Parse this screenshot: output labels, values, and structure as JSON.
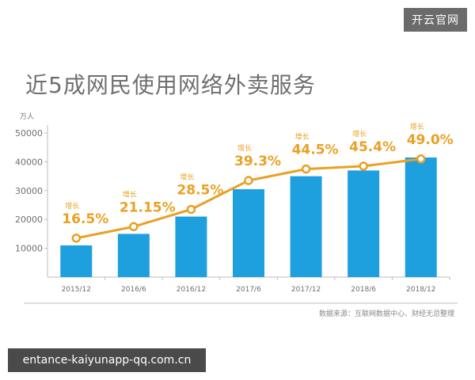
{
  "badge": "开云官网",
  "watermark": "entance-kaiyunapp-qq.com.cn",
  "source": "数据来源：互联网数据中心、财经无忌整理",
  "colors": {
    "bar": "#1ea0df",
    "line": "#eaa024",
    "axis": "#bdbdbd",
    "text": "#6f6f6f"
  },
  "chart_data": {
    "type": "bar",
    "title": "近5成网民使用网络外卖服务",
    "ylabel": "万人",
    "ylim": [
      0,
      50000
    ],
    "yticks": [
      "10000",
      "20000",
      "30000",
      "40000",
      "50000"
    ],
    "categories": [
      "2015/12",
      "2016/6",
      "2016/12",
      "2017/6",
      "2017/12",
      "2018/6",
      "2018/12"
    ],
    "values": [
      11000,
      15000,
      21000,
      30500,
      35000,
      37000,
      41500
    ],
    "line_series": {
      "values": [
        13500,
        17500,
        23500,
        33500,
        37500,
        38500,
        41000
      ],
      "labels": [
        "16.5%",
        "21.15%",
        "28.5%",
        "39.3%",
        "44.5%",
        "45.4%",
        "49.0%"
      ],
      "tag": "增长"
    }
  }
}
